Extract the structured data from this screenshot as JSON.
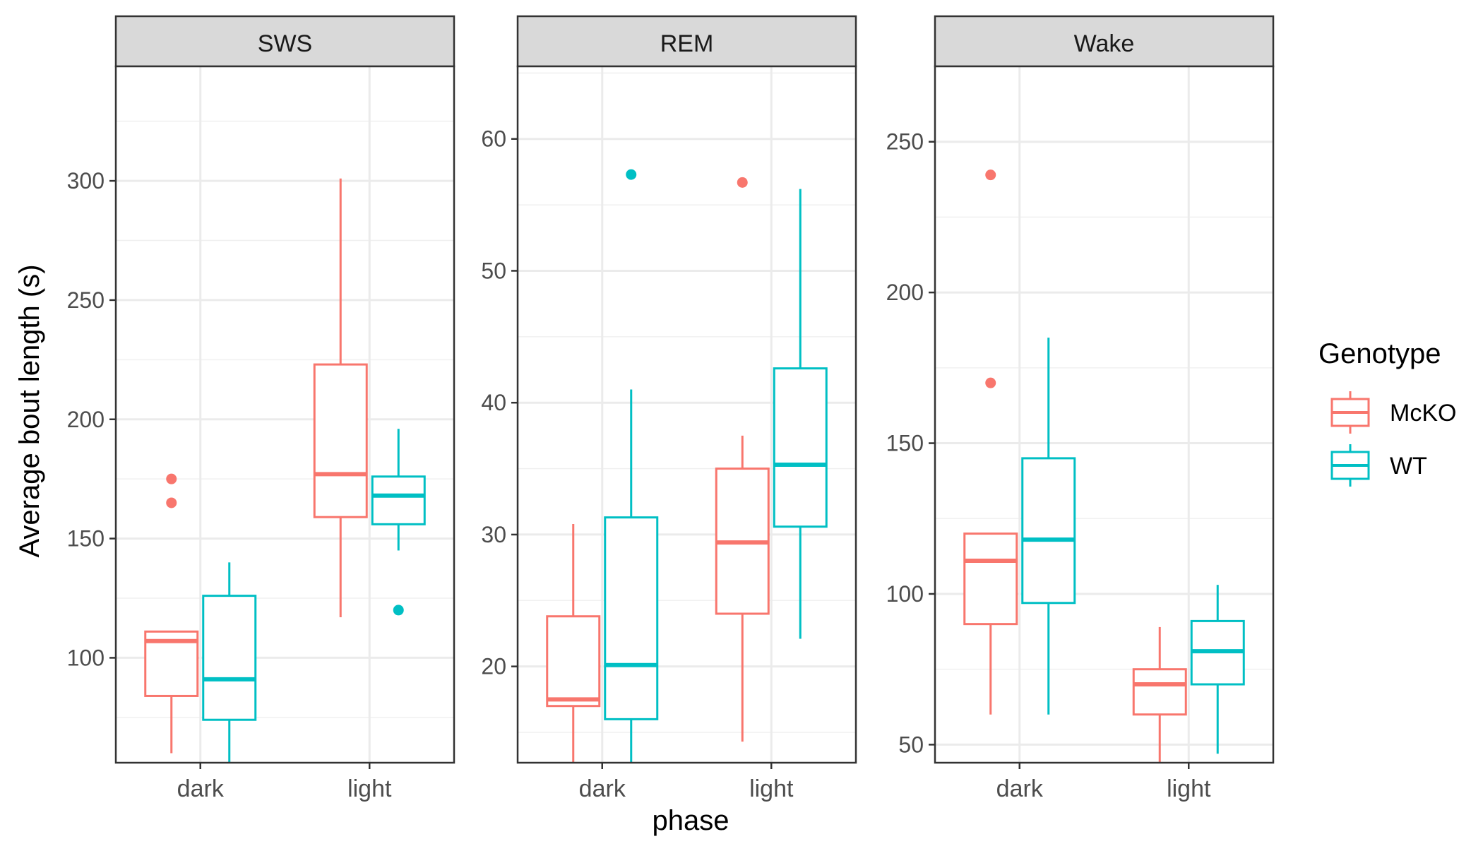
{
  "chart_data": {
    "type": "boxplot",
    "ylabel": "Average bout length (s)",
    "xlabel": "phase",
    "categories": [
      "dark",
      "light"
    ],
    "legend": {
      "title": "Genotype",
      "position": "right",
      "entries": [
        {
          "name": "McKO",
          "color": "#F8766D"
        },
        {
          "name": "WT",
          "color": "#00BFC4"
        }
      ]
    },
    "grid": true,
    "panels": [
      {
        "title": "SWS",
        "ylim": [
          56,
          348
        ],
        "yticks": [
          100,
          150,
          200,
          250,
          300
        ],
        "series": [
          {
            "name": "McKO",
            "boxes": [
              {
                "x": "dark",
                "min": 60,
                "q1": 84,
                "median": 107,
                "q3": 111,
                "max": 111,
                "outliers": [
                  175,
                  165
                ]
              },
              {
                "x": "light",
                "min": 117,
                "q1": 159,
                "median": 177,
                "q3": 223,
                "max": 301,
                "outliers": []
              }
            ]
          },
          {
            "name": "WT",
            "boxes": [
              {
                "x": "dark",
                "min": 56,
                "q1": 74,
                "median": 91,
                "q3": 126,
                "max": 140,
                "outliers": []
              },
              {
                "x": "light",
                "min": 145,
                "q1": 156,
                "median": 168,
                "q3": 176,
                "max": 196,
                "outliers": [
                  120
                ]
              }
            ]
          }
        ]
      },
      {
        "title": "REM",
        "ylim": [
          12.7,
          65.5
        ],
        "yticks": [
          20,
          30,
          40,
          50,
          60
        ],
        "series": [
          {
            "name": "McKO",
            "boxes": [
              {
                "x": "dark",
                "min": 12.7,
                "q1": 17,
                "median": 17.5,
                "q3": 23.8,
                "max": 30.8,
                "outliers": []
              },
              {
                "x": "light",
                "min": 14.3,
                "q1": 24,
                "median": 29.4,
                "q3": 35,
                "max": 37.5,
                "outliers": [
                  56.7
                ]
              }
            ]
          },
          {
            "name": "WT",
            "boxes": [
              {
                "x": "dark",
                "min": 12.7,
                "q1": 16,
                "median": 20.1,
                "q3": 31.3,
                "max": 41,
                "outliers": [
                  57.3
                ]
              },
              {
                "x": "light",
                "min": 22.1,
                "q1": 30.6,
                "median": 35.3,
                "q3": 42.6,
                "max": 56.2,
                "outliers": []
              }
            ]
          }
        ]
      },
      {
        "title": "Wake",
        "ylim": [
          44,
          275
        ],
        "yticks": [
          50,
          100,
          150,
          200,
          250
        ],
        "series": [
          {
            "name": "McKO",
            "boxes": [
              {
                "x": "dark",
                "min": 60,
                "q1": 90,
                "median": 111,
                "q3": 120,
                "max": 120,
                "outliers": [
                  239,
                  170
                ]
              },
              {
                "x": "light",
                "min": 44,
                "q1": 60,
                "median": 70,
                "q3": 75,
                "max": 89,
                "outliers": []
              }
            ]
          },
          {
            "name": "WT",
            "boxes": [
              {
                "x": "dark",
                "min": 60,
                "q1": 97,
                "median": 118,
                "q3": 145,
                "max": 185,
                "outliers": []
              },
              {
                "x": "light",
                "min": 47,
                "q1": 70,
                "median": 81,
                "q3": 91,
                "max": 103,
                "outliers": []
              }
            ]
          }
        ]
      }
    ]
  }
}
